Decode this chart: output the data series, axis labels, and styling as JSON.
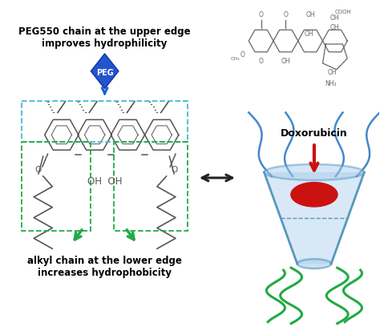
{
  "bg_color": "#ffffff",
  "text_upper_left": "PEG550 chain at the upper edge\nimproves hydrophilicity",
  "text_lower_left": "alkyl chain at the lower edge\nincreases hydrophobicity",
  "text_doxorubicin": "Doxorubicin",
  "peg_label": "PEG",
  "peg_color_top": "#6699ee",
  "peg_color_bot": "#1133aa",
  "arrow_blue_color": "#1a5fd4",
  "arrow_green_color": "#22aa44",
  "arrow_red_color": "#cc1111",
  "arrow_black_color": "#222222",
  "dashed_box_upper_color": "#44bbcc",
  "dashed_box_lower_left_color": "#22aa44",
  "dashed_box_lower_right_color": "#22aa44",
  "calixarene_cup_color": "#aaccee",
  "cup_edge_color": "#5599bb",
  "dox_color": "#cc1111",
  "green_chain_color": "#22aa44",
  "blue_chain_color": "#4488cc",
  "mol_line_color": "#555555"
}
